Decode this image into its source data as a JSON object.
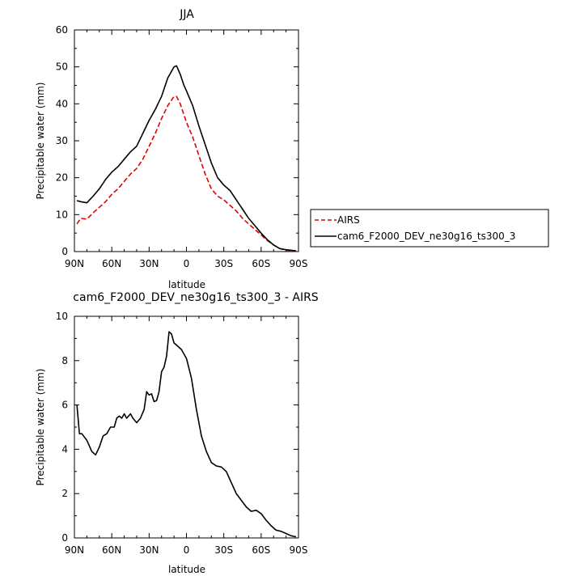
{
  "chart_data": [
    {
      "type": "line",
      "title": "JJA",
      "xlabel": "latitude",
      "ylabel": "Precipitable water (mm)",
      "xlim": [
        90,
        -90
      ],
      "ylim": [
        0,
        60
      ],
      "yticks": [
        0,
        10,
        20,
        30,
        40,
        50,
        60
      ],
      "xticks": [
        90,
        60,
        30,
        0,
        -30,
        -60,
        -90
      ],
      "xtick_labels": [
        "90N",
        "60N",
        "30N",
        "0",
        "30S",
        "60S",
        "90S"
      ],
      "grid": false,
      "legend_placement": "right",
      "series": [
        {
          "name": "AIRS",
          "color": "#e00000",
          "dash": "dashed",
          "x": [
            88,
            85,
            80,
            75,
            70,
            65,
            60,
            55,
            50,
            45,
            40,
            35,
            30,
            25,
            20,
            15,
            10,
            8,
            5,
            2,
            0,
            -5,
            -10,
            -15,
            -20,
            -25,
            -30,
            -35,
            -40,
            -45,
            -50,
            -55,
            -60,
            -65,
            -70,
            -75,
            -80,
            -85,
            -88
          ],
          "values": [
            7.5,
            9,
            8.8,
            10.5,
            12,
            13.5,
            15.5,
            17,
            19,
            21,
            22.5,
            25,
            28.5,
            32,
            36,
            39.5,
            42,
            42,
            40,
            37,
            35,
            31,
            26,
            21,
            17,
            15,
            14,
            12.5,
            11,
            9,
            7.5,
            6,
            4.5,
            3,
            1.8,
            0.8,
            0.4,
            0.2,
            0.1
          ]
        },
        {
          "name": "cam6_F2000_DEV_ne30g16_ts300_3",
          "color": "#000000",
          "dash": "solid",
          "x": [
            88,
            85,
            80,
            75,
            70,
            65,
            60,
            55,
            50,
            45,
            40,
            35,
            30,
            25,
            20,
            15,
            10,
            8,
            5,
            2,
            0,
            -5,
            -10,
            -15,
            -20,
            -25,
            -30,
            -35,
            -40,
            -45,
            -50,
            -55,
            -60,
            -65,
            -70,
            -75,
            -80,
            -85,
            -88
          ],
          "values": [
            13.8,
            13.5,
            13.2,
            15,
            17,
            19.5,
            21.5,
            23,
            25,
            27,
            28.5,
            32,
            35.5,
            38.5,
            42,
            47,
            50,
            50.3,
            48,
            45,
            43.5,
            39.5,
            34,
            29,
            24,
            20,
            18,
            16.5,
            14,
            11.5,
            9,
            7,
            5,
            3.2,
            1.8,
            0.8,
            0.5,
            0.3,
            0.2
          ]
        }
      ]
    },
    {
      "type": "line",
      "title": "cam6_F2000_DEV_ne30g16_ts300_3 - AIRS",
      "xlabel": "latitude",
      "ylabel": "Precipitable water (mm)",
      "xlim": [
        90,
        -90
      ],
      "ylim": [
        0,
        10
      ],
      "yticks": [
        0,
        2,
        4,
        6,
        8,
        10
      ],
      "xticks": [
        90,
        60,
        30,
        0,
        -30,
        -60,
        -90
      ],
      "xtick_labels": [
        "90N",
        "60N",
        "30N",
        "0",
        "30S",
        "60S",
        "90S"
      ],
      "grid": false,
      "series": [
        {
          "color": "#000000",
          "dash": "solid",
          "x": [
            88,
            86,
            84,
            80,
            76,
            73,
            70,
            67,
            64,
            61,
            58,
            56,
            54,
            52,
            50,
            48,
            45,
            43,
            40,
            37,
            34,
            32,
            30,
            28,
            26,
            24,
            22,
            20,
            18,
            16,
            14,
            12,
            10,
            8,
            6,
            4,
            2,
            0,
            -4,
            -8,
            -12,
            -16,
            -20,
            -24,
            -28,
            -32,
            -36,
            -40,
            -44,
            -48,
            -52,
            -56,
            -60,
            -64,
            -68,
            -72,
            -76,
            -80,
            -84,
            -88
          ],
          "values": [
            6.0,
            4.7,
            4.7,
            4.4,
            3.9,
            3.75,
            4.1,
            4.6,
            4.7,
            5.0,
            5.0,
            5.4,
            5.5,
            5.4,
            5.6,
            5.4,
            5.6,
            5.4,
            5.2,
            5.4,
            5.8,
            6.6,
            6.45,
            6.5,
            6.15,
            6.2,
            6.6,
            7.5,
            7.7,
            8.2,
            9.3,
            9.2,
            8.8,
            8.7,
            8.6,
            8.5,
            8.3,
            8.1,
            7.2,
            5.8,
            4.6,
            3.9,
            3.4,
            3.25,
            3.2,
            3.0,
            2.5,
            2.0,
            1.7,
            1.4,
            1.2,
            1.25,
            1.1,
            0.8,
            0.55,
            0.35,
            0.3,
            0.2,
            0.1,
            0.05
          ]
        }
      ]
    }
  ]
}
